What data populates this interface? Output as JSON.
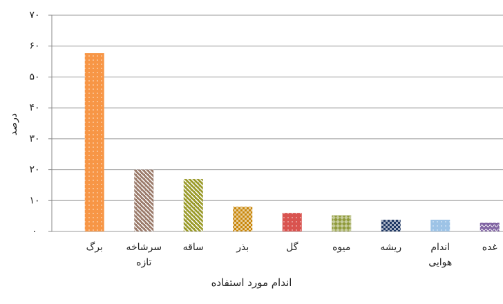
{
  "chart_data": {
    "type": "bar",
    "categories": [
      "برگ",
      "سرشاخه تازه",
      "ساقه",
      "بذر",
      "گل",
      "میوه",
      "ریشه",
      "اندام هوایی",
      "غده"
    ],
    "values": [
      57.7,
      20,
      17,
      8,
      6,
      5.2,
      3.8,
      3.8,
      2.8
    ],
    "colors": [
      "#f79646",
      "#9b7b6b",
      "#9a9a2a",
      "#c8860a",
      "#d9534f",
      "#8f9a3a",
      "#1f3864",
      "#9dc3e6",
      "#8064a2"
    ],
    "ylim": [
      0,
      70
    ],
    "yticks": [
      {
        "value": 0,
        "label": "۰"
      },
      {
        "value": 10,
        "label": "۱۰"
      },
      {
        "value": 20,
        "label": "۲۰"
      },
      {
        "value": 30,
        "label": "۳۰"
      },
      {
        "value": 40,
        "label": "۴۰"
      },
      {
        "value": 50,
        "label": "۵۰"
      },
      {
        "value": 60,
        "label": "۶۰"
      },
      {
        "value": 70,
        "label": "۷۰"
      }
    ],
    "ylabel": "درصد",
    "xlabel": "اندام مورد استفاده",
    "grid": true
  }
}
